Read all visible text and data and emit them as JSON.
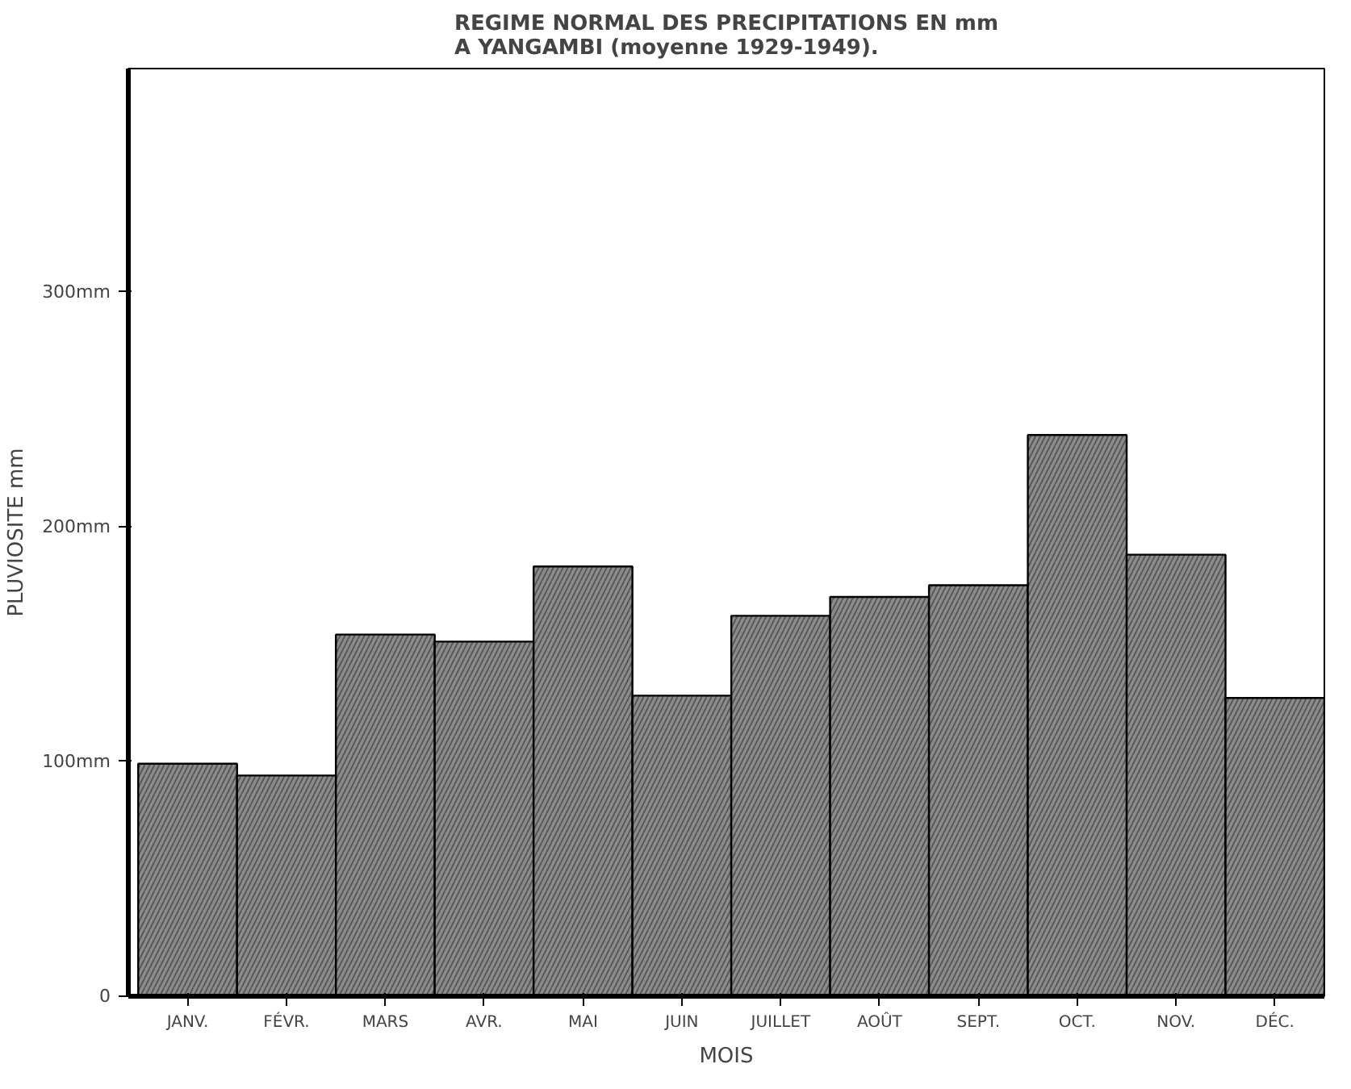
{
  "chart_data": {
    "type": "bar",
    "title": "REGIME NORMAL DES PRECIPITATIONS EN mm\nA YANGAMBI (moyenne 1929-1949).",
    "xlabel": "MOIS",
    "ylabel": "PLUVIOSITE mm",
    "categories": [
      "JANV.",
      "FÉVR.",
      "MARS",
      "AVR.",
      "MAI",
      "JUIN",
      "JUILLET",
      "AOÛT",
      "SEPT.",
      "OCT.",
      "NOV.",
      "DÉC."
    ],
    "values": [
      99,
      94,
      154,
      151,
      183,
      128,
      162,
      170,
      175,
      239,
      188,
      127
    ],
    "color": "#8c8c8c",
    "ylim": [
      0,
      395
    ],
    "yticks": [
      {
        "value": 0,
        "label": "0"
      },
      {
        "value": 100,
        "label": "100mm"
      },
      {
        "value": 200,
        "label": "200mm"
      },
      {
        "value": 300,
        "label": "300mm"
      }
    ],
    "grid": false
  }
}
